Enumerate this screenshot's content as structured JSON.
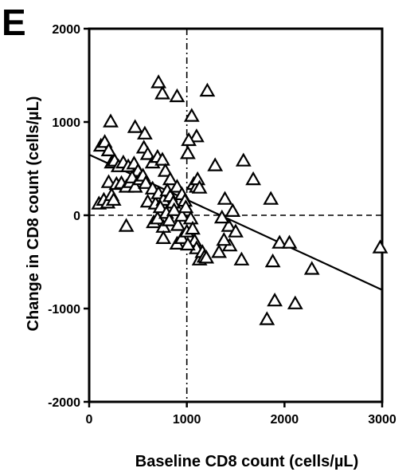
{
  "panel_label": "E",
  "chart_data": {
    "type": "scatter",
    "title": "",
    "xlabel": "Baseline   CD8   count   (cells/µL)",
    "ylabel": "Change  in  CD8  count  (cells/µL)",
    "xlim": [
      0,
      3000
    ],
    "ylim": [
      -2000,
      2000
    ],
    "xticks": [
      "0",
      "1000",
      "2000",
      "3000"
    ],
    "yticks": [
      "2000",
      "1000",
      "0",
      "-1000",
      "-2000"
    ],
    "marker": "open-triangle",
    "grid": false,
    "reference_lines": [
      {
        "orientation": "horizontal",
        "value": 0,
        "style": "dashed"
      },
      {
        "orientation": "vertical",
        "value": 1000,
        "style": "dash-dot"
      }
    ],
    "regression_line": {
      "x": [
        0,
        3000
      ],
      "y": [
        650,
        -800
      ]
    },
    "points": [
      [
        710,
        1420
      ],
      [
        750,
        1300
      ],
      [
        900,
        1270
      ],
      [
        1210,
        1330
      ],
      [
        220,
        1000
      ],
      [
        470,
        940
      ],
      [
        570,
        870
      ],
      [
        1050,
        1060
      ],
      [
        1100,
        840
      ],
      [
        120,
        740
      ],
      [
        160,
        780
      ],
      [
        200,
        690
      ],
      [
        230,
        560
      ],
      [
        260,
        580
      ],
      [
        300,
        520
      ],
      [
        350,
        560
      ],
      [
        400,
        520
      ],
      [
        460,
        550
      ],
      [
        500,
        470
      ],
      [
        560,
        720
      ],
      [
        600,
        650
      ],
      [
        650,
        560
      ],
      [
        700,
        620
      ],
      [
        750,
        590
      ],
      [
        780,
        470
      ],
      [
        830,
        380
      ],
      [
        100,
        120
      ],
      [
        150,
        160
      ],
      [
        190,
        130
      ],
      [
        200,
        350
      ],
      [
        230,
        210
      ],
      [
        250,
        160
      ],
      [
        280,
        330
      ],
      [
        330,
        340
      ],
      [
        380,
        300
      ],
      [
        420,
        350
      ],
      [
        440,
        400
      ],
      [
        470,
        300
      ],
      [
        520,
        380
      ],
      [
        550,
        420
      ],
      [
        580,
        340
      ],
      [
        600,
        140
      ],
      [
        650,
        280
      ],
      [
        680,
        120
      ],
      [
        710,
        230
      ],
      [
        760,
        160
      ],
      [
        800,
        260
      ],
      [
        830,
        200
      ],
      [
        860,
        130
      ],
      [
        900,
        300
      ],
      [
        950,
        220
      ],
      [
        980,
        150
      ],
      [
        660,
        -80
      ],
      [
        700,
        -40
      ],
      [
        730,
        80
      ],
      [
        760,
        -130
      ],
      [
        790,
        20
      ],
      [
        820,
        -60
      ],
      [
        870,
        50
      ],
      [
        910,
        -110
      ],
      [
        950,
        -10
      ],
      [
        990,
        80
      ],
      [
        380,
        -120
      ],
      [
        760,
        -250
      ],
      [
        900,
        -310
      ],
      [
        950,
        -250
      ],
      [
        1000,
        -180
      ],
      [
        1040,
        -40
      ],
      [
        1060,
        -150
      ],
      [
        1080,
        -280
      ],
      [
        1100,
        -360
      ],
      [
        1130,
        -480
      ],
      [
        1160,
        -400
      ],
      [
        1180,
        -450
      ],
      [
        1200,
        -460
      ],
      [
        1010,
        -320
      ],
      [
        1010,
        660
      ],
      [
        1020,
        800
      ],
      [
        1070,
        330
      ],
      [
        1100,
        300
      ],
      [
        1110,
        380
      ],
      [
        1130,
        290
      ],
      [
        1290,
        530
      ],
      [
        1390,
        170
      ],
      [
        1470,
        40
      ],
      [
        1430,
        -120
      ],
      [
        1500,
        -180
      ],
      [
        1440,
        -330
      ],
      [
        1560,
        -480
      ],
      [
        1580,
        580
      ],
      [
        1680,
        380
      ],
      [
        1360,
        -30
      ],
      [
        1380,
        -270
      ],
      [
        1330,
        -400
      ],
      [
        1860,
        170
      ],
      [
        1880,
        -500
      ],
      [
        1950,
        -300
      ],
      [
        2050,
        -300
      ],
      [
        2280,
        -580
      ],
      [
        1900,
        -920
      ],
      [
        2110,
        -950
      ],
      [
        1820,
        -1120
      ],
      [
        2980,
        -350
      ]
    ]
  }
}
